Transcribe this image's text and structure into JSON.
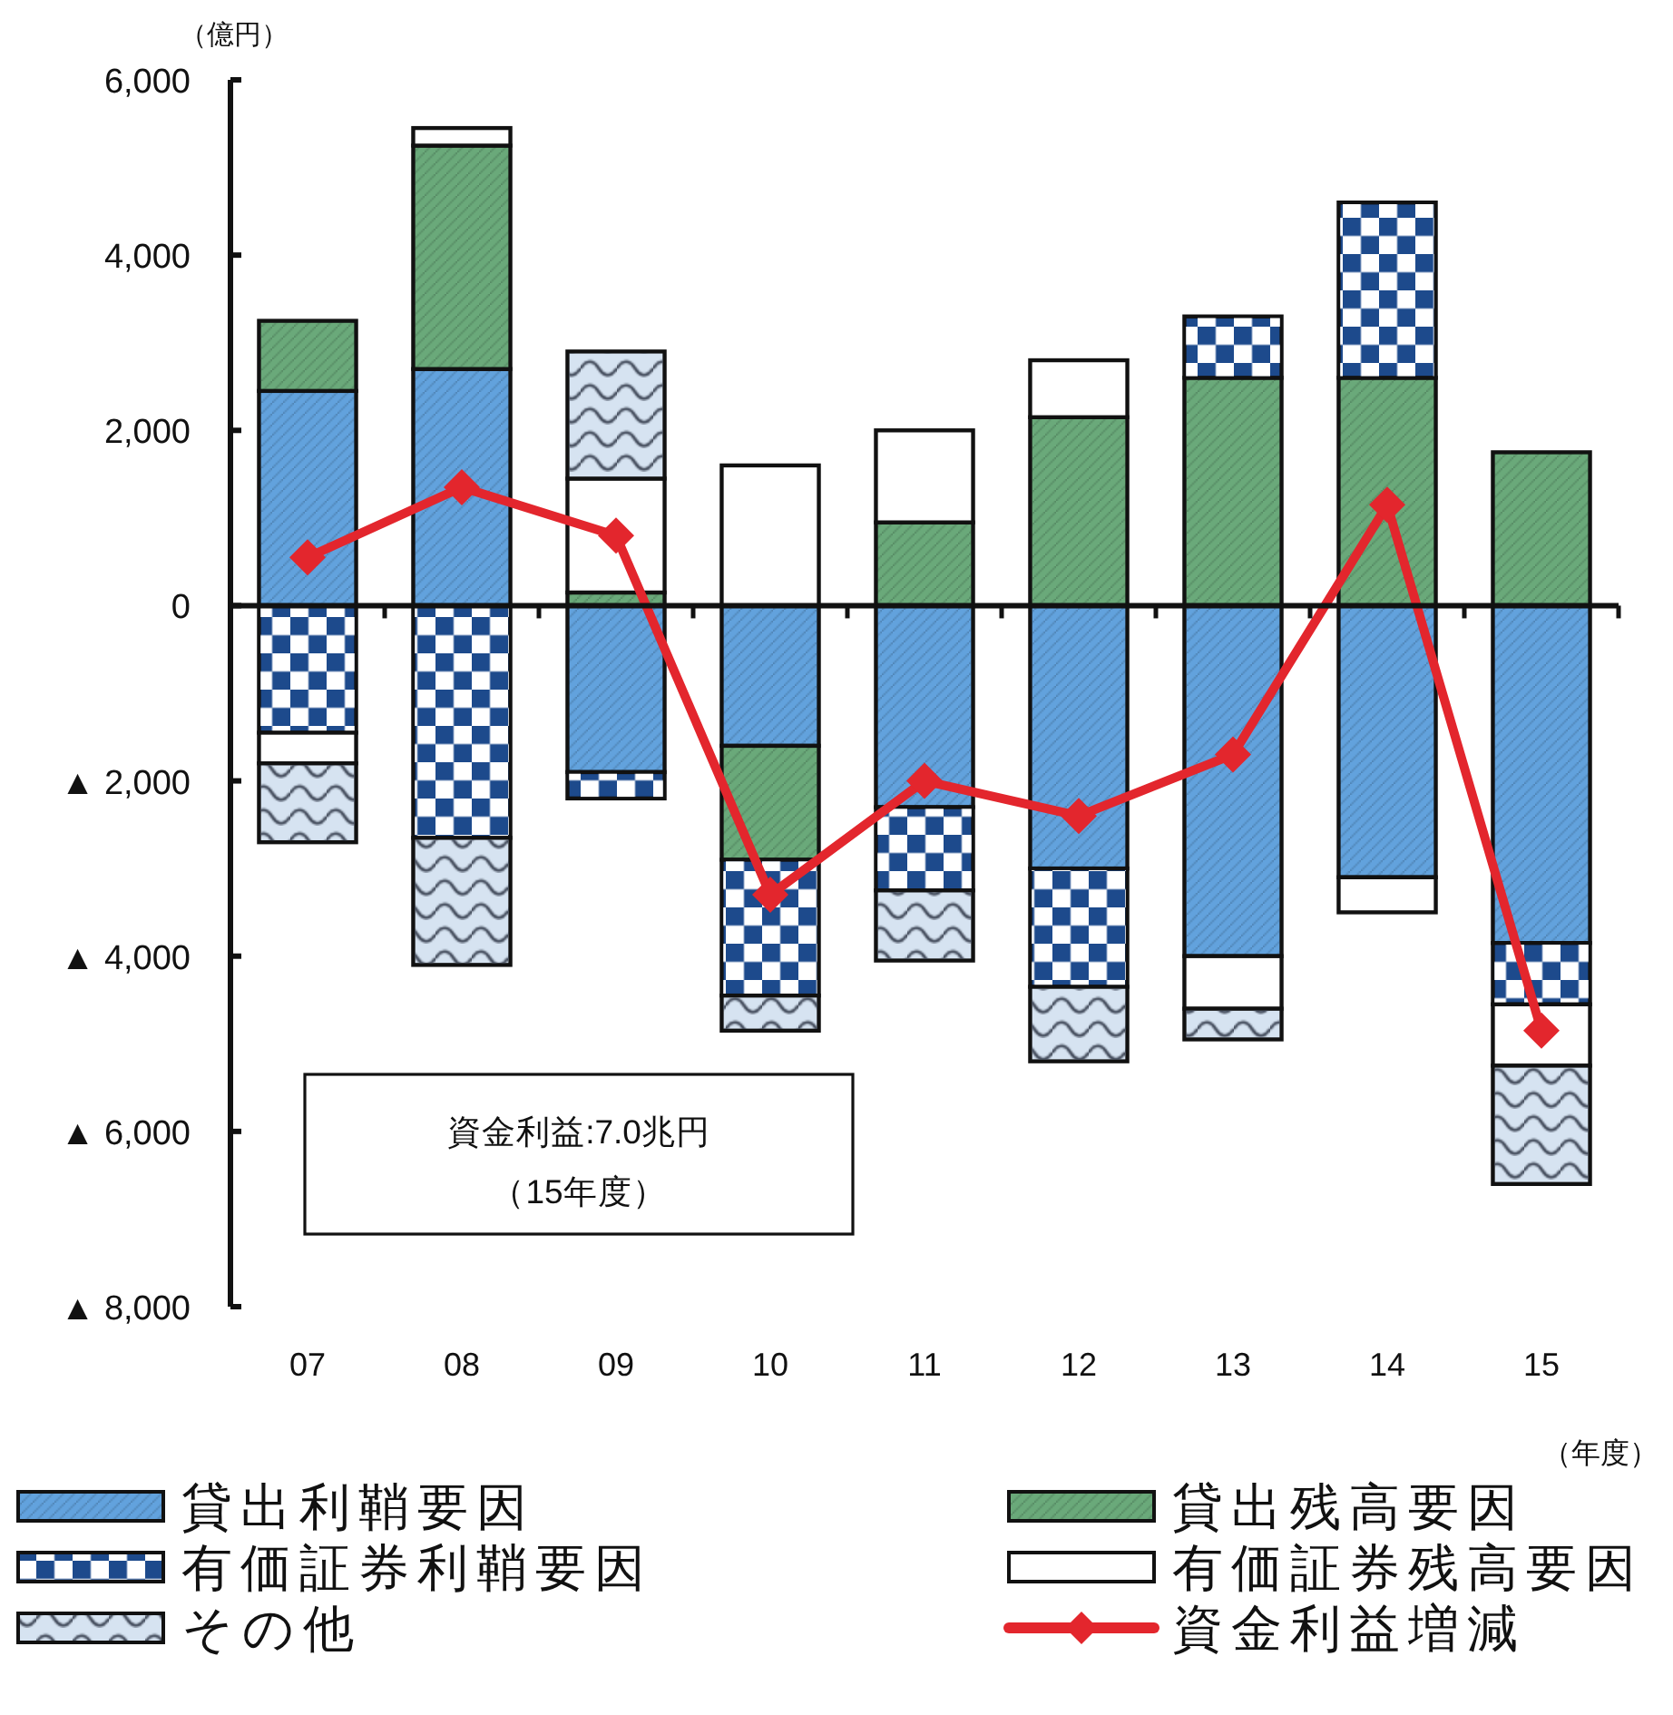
{
  "chart_data": {
    "type": "bar",
    "stacked": true,
    "ylabel": "（億円）",
    "xlabel": "（年度）",
    "categories": [
      "07",
      "08",
      "09",
      "10",
      "11",
      "12",
      "13",
      "14",
      "15"
    ],
    "ylim": [
      -8000,
      6000
    ],
    "yticks": [
      {
        "value": -8000,
        "label": "▲ 8,000"
      },
      {
        "value": -6000,
        "label": "▲ 6,000"
      },
      {
        "value": -4000,
        "label": "▲ 4,000"
      },
      {
        "value": -2000,
        "label": "▲ 2,000"
      },
      0,
      {
        "value": 2000,
        "label": "2,000"
      },
      {
        "value": 4000,
        "label": "4,000"
      },
      {
        "value": 6000,
        "label": "6,000"
      }
    ],
    "series": [
      {
        "name": "貸出利鞘要因",
        "color": "#62a2dd",
        "values": [
          2450,
          2700,
          -1900,
          -1600,
          -2300,
          -3000,
          -4000,
          -3100,
          -3850
        ]
      },
      {
        "name": "貸出残高要因",
        "color": "#6aa97a",
        "values": [
          800,
          2550,
          150,
          -1300,
          950,
          2150,
          2600,
          2600,
          1750
        ]
      },
      {
        "name": "有価証券利鞘要因",
        "color": "#1d4a8c",
        "values": [
          -1450,
          -2650,
          -300,
          -1550,
          -950,
          -1350,
          700,
          2000,
          -700
        ]
      },
      {
        "name": "有価証券残高要因",
        "color": "#ffffff",
        "values": [
          -350,
          200,
          1300,
          1600,
          1050,
          650,
          -600,
          -400,
          -700
        ]
      },
      {
        "name": "その他",
        "color": "#d6e3f1",
        "values": [
          -900,
          -1450,
          1450,
          -400,
          -800,
          -850,
          -350,
          null,
          -1350
        ]
      },
      {
        "name": "資金利益増減",
        "type": "line",
        "marker": "diamond",
        "color": "#e3262d",
        "values": [
          550,
          1350,
          800,
          -3300,
          -2000,
          -2400,
          -1700,
          1150,
          -4850
        ]
      }
    ],
    "legend": "bottom",
    "annotations": [
      "資金利益:7.0兆円",
      "（15年度）"
    ]
  }
}
